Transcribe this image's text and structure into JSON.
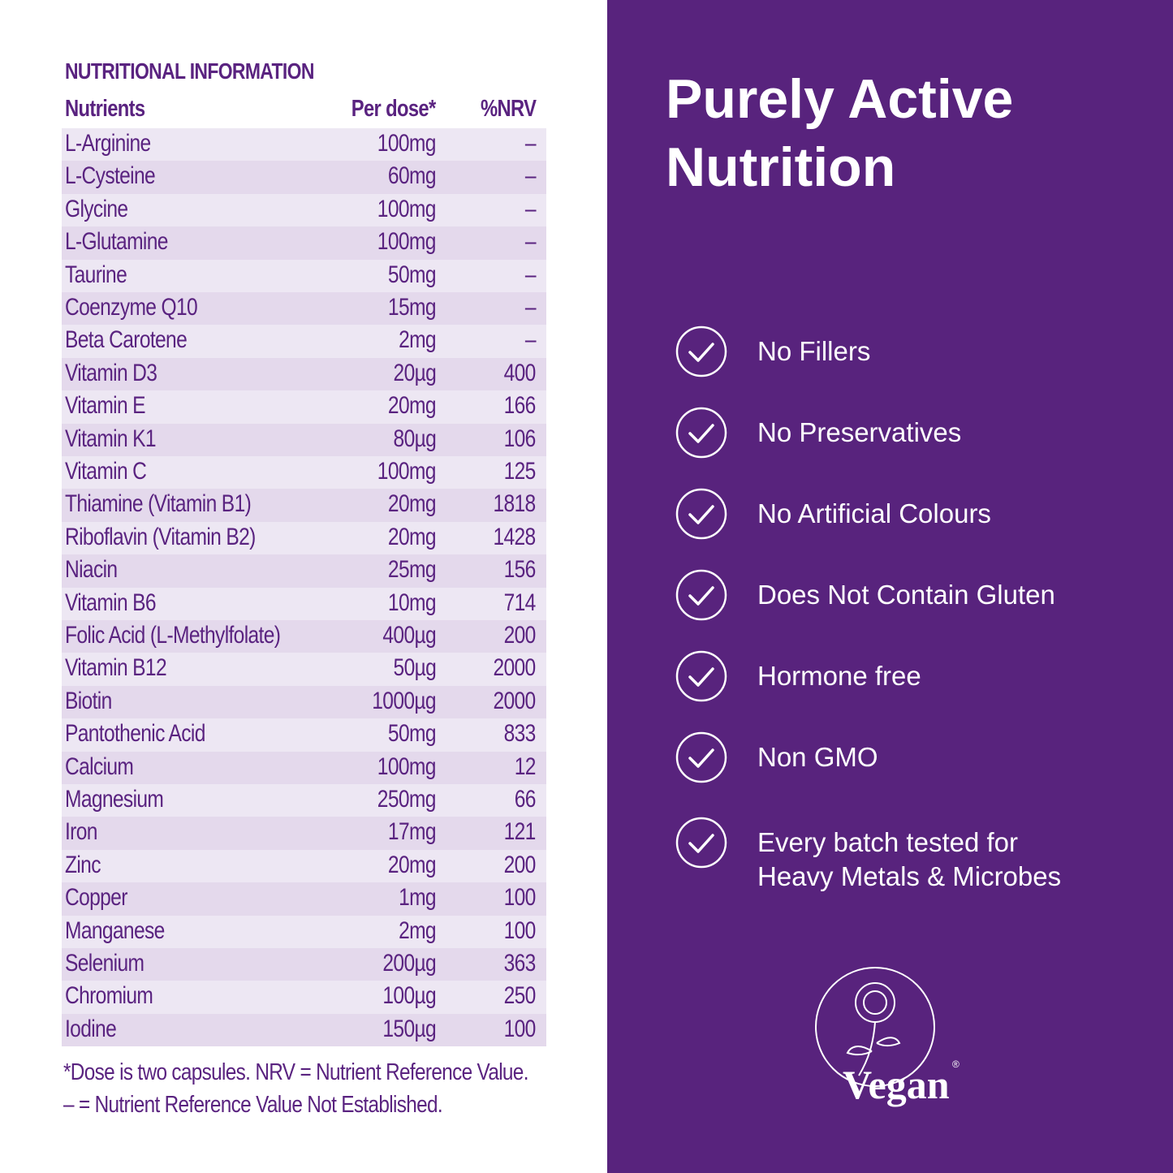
{
  "nutrition": {
    "title": "NUTRITIONAL INFORMATION",
    "columns": [
      "Nutrients",
      "Per dose*",
      "%NRV"
    ],
    "rows": [
      [
        "L-Arginine",
        "100mg",
        "–"
      ],
      [
        "L-Cysteine",
        "60mg",
        "–"
      ],
      [
        "Glycine",
        "100mg",
        "–"
      ],
      [
        "L-Glutamine",
        "100mg",
        "–"
      ],
      [
        "Taurine",
        "50mg",
        "–"
      ],
      [
        "Coenzyme Q10",
        "15mg",
        "–"
      ],
      [
        "Beta Carotene",
        "2mg",
        "–"
      ],
      [
        "Vitamin D3",
        "20µg",
        "400"
      ],
      [
        "Vitamin E",
        "20mg",
        "166"
      ],
      [
        "Vitamin K1",
        "80µg",
        "106"
      ],
      [
        "Vitamin C",
        "100mg",
        "125"
      ],
      [
        "Thiamine (Vitamin B1)",
        "20mg",
        "1818"
      ],
      [
        "Riboflavin (Vitamin B2)",
        "20mg",
        "1428"
      ],
      [
        "Niacin",
        "25mg",
        "156"
      ],
      [
        "Vitamin B6",
        "10mg",
        "714"
      ],
      [
        "Folic Acid (L-Methylfolate)",
        "400µg",
        "200"
      ],
      [
        "Vitamin B12",
        "50µg",
        "2000"
      ],
      [
        "Biotin",
        "1000µg",
        "2000"
      ],
      [
        "Pantothenic Acid",
        "50mg",
        "833"
      ],
      [
        "Calcium",
        "100mg",
        "12"
      ],
      [
        "Magnesium",
        "250mg",
        "66"
      ],
      [
        "Iron",
        "17mg",
        "121"
      ],
      [
        "Zinc",
        "20mg",
        "200"
      ],
      [
        "Copper",
        "1mg",
        "100"
      ],
      [
        "Manganese",
        "2mg",
        "100"
      ],
      [
        "Selenium",
        "200µg",
        "363"
      ],
      [
        "Chromium",
        "100µg",
        "250"
      ],
      [
        "Iodine",
        "150µg",
        "100"
      ]
    ],
    "footnotes": [
      "*Dose is two capsules. NRV = Nutrient Reference Value.",
      "– = Nutrient Reference Value Not Established."
    ]
  },
  "panel": {
    "title_lines": [
      "Purely Active",
      "Nutrition"
    ],
    "claims": [
      [
        "No Fillers"
      ],
      [
        "No Preservatives"
      ],
      [
        "No Artificial Colours"
      ],
      [
        "Does Not Contain Gluten"
      ],
      [
        "Hormone free"
      ],
      [
        "Non GMO"
      ],
      [
        "Every batch tested for",
        "Heavy Metals & Microbes"
      ]
    ],
    "logo": {
      "text": "Vegan",
      "mark": "®"
    }
  }
}
